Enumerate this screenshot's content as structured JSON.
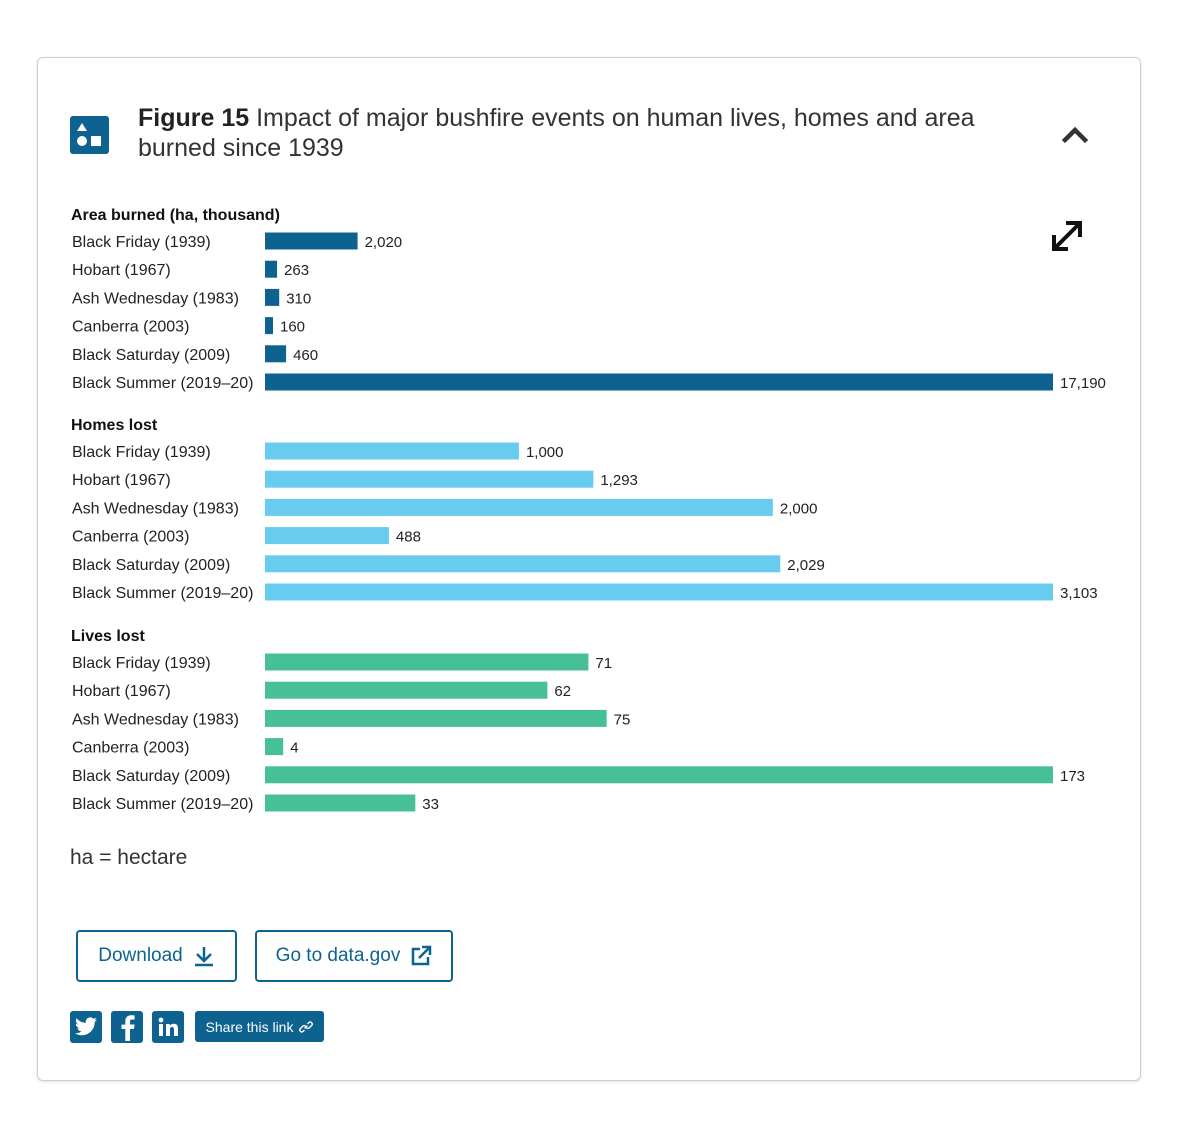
{
  "header": {
    "figure_label": "Figure 15",
    "title": "Impact of major bushfire events on human lives, homes and area burned since 1939"
  },
  "icons": {
    "figure": "shapes-icon",
    "collapse": "chevron-up-icon",
    "expand": "expand-arrows-icon",
    "download": "download-icon",
    "external": "external-link-icon",
    "link": "link-icon"
  },
  "colors": {
    "area": "#0e6290",
    "homes": "#68ccee",
    "lives": "#47bf97",
    "brand": "#0e6290"
  },
  "chart_data": [
    {
      "type": "bar",
      "orientation": "horizontal",
      "title": "Area burned (ha, thousand)",
      "categories": [
        "Black Friday (1939)",
        "Hobart (1967)",
        "Ash Wednesday (1983)",
        "Canberra (2003)",
        "Black Saturday (2009)",
        "Black Summer (2019–20)"
      ],
      "values": [
        2020,
        263,
        310,
        160,
        460,
        17190
      ],
      "labels": [
        "2,020",
        "263",
        "310",
        "160",
        "460",
        "17,190"
      ],
      "max": 17190
    },
    {
      "type": "bar",
      "orientation": "horizontal",
      "title": "Homes lost",
      "categories": [
        "Black Friday (1939)",
        "Hobart (1967)",
        "Ash Wednesday (1983)",
        "Canberra (2003)",
        "Black Saturday (2009)",
        "Black Summer (2019–20)"
      ],
      "values": [
        1000,
        1293,
        2000,
        488,
        2029,
        3103
      ],
      "labels": [
        "1,000",
        "1,293",
        "2,000",
        "488",
        "2,029",
        "3,103"
      ],
      "max": 3103
    },
    {
      "type": "bar",
      "orientation": "horizontal",
      "title": "Lives lost",
      "categories": [
        "Black Friday (1939)",
        "Hobart (1967)",
        "Ash Wednesday (1983)",
        "Canberra (2003)",
        "Black Saturday (2009)",
        "Black Summer (2019–20)"
      ],
      "values": [
        71,
        62,
        75,
        4,
        173,
        33
      ],
      "labels": [
        "71",
        "62",
        "75",
        "4",
        "173",
        "33"
      ],
      "max": 173
    }
  ],
  "note": "ha = hectare",
  "buttons": {
    "download": "Download",
    "datagov": "Go to data.gov"
  },
  "share": {
    "label": "Share this link",
    "twitter": "twitter-icon",
    "facebook": "facebook-icon",
    "linkedin": "linkedin-icon"
  }
}
